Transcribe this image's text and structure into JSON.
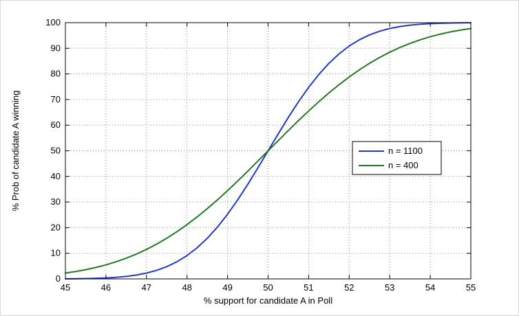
{
  "figure": {
    "background": "#ffffff",
    "frame_color": "#d6d6d6"
  },
  "chart_data": {
    "type": "line",
    "title": "",
    "xlabel": "% support for candidate A in Poll",
    "ylabel": "% Prob of candidate A winning",
    "xlim": [
      45,
      55
    ],
    "ylim": [
      0,
      100
    ],
    "xticks": [
      45,
      46,
      47,
      48,
      49,
      50,
      51,
      52,
      53,
      54,
      55
    ],
    "yticks": [
      0,
      10,
      20,
      30,
      40,
      50,
      60,
      70,
      80,
      90,
      100
    ],
    "grid": true,
    "grid_style": "dotted",
    "grid_color": "#8a8a8a",
    "axes_color": "#000000",
    "legend": {
      "position": "middle-right",
      "border_color": "#000000",
      "background": "#ffffff"
    },
    "x": [
      45,
      45.25,
      45.5,
      45.75,
      46,
      46.25,
      46.5,
      46.75,
      47,
      47.25,
      47.5,
      47.75,
      48,
      48.25,
      48.5,
      48.75,
      49,
      49.25,
      49.5,
      49.75,
      50,
      50.25,
      50.5,
      50.75,
      51,
      51.25,
      51.5,
      51.75,
      52,
      52.25,
      52.5,
      52.75,
      53,
      53.25,
      53.5,
      53.75,
      54,
      54.25,
      54.5,
      54.75,
      55
    ],
    "series": [
      {
        "name": "n = 1100",
        "color": "#2038c8",
        "values": [
          0.04,
          0.08,
          0.13,
          0.23,
          0.38,
          0.62,
          0.98,
          1.51,
          2.28,
          3.34,
          4.78,
          6.68,
          9.12,
          12.17,
          15.87,
          20.23,
          25.25,
          30.85,
          36.94,
          43.38,
          50,
          56.62,
          63.06,
          69.15,
          74.75,
          79.77,
          84.13,
          87.83,
          90.88,
          93.32,
          95.22,
          96.66,
          97.72,
          98.49,
          99.02,
          99.38,
          99.62,
          99.77,
          99.87,
          99.92,
          99.96
        ]
      },
      {
        "name": "n = 400",
        "color": "#217821",
        "values": [
          2.28,
          2.87,
          3.59,
          4.46,
          5.48,
          6.68,
          8.08,
          9.68,
          11.51,
          13.57,
          15.87,
          18.41,
          21.19,
          24.2,
          27.43,
          30.85,
          34.46,
          38.21,
          42.07,
          46.02,
          50,
          53.98,
          57.93,
          61.79,
          65.54,
          69.15,
          72.58,
          75.8,
          78.81,
          81.59,
          84.13,
          86.43,
          88.49,
          90.32,
          91.92,
          93.32,
          94.52,
          95.54,
          96.41,
          97.13,
          97.73
        ]
      }
    ]
  }
}
